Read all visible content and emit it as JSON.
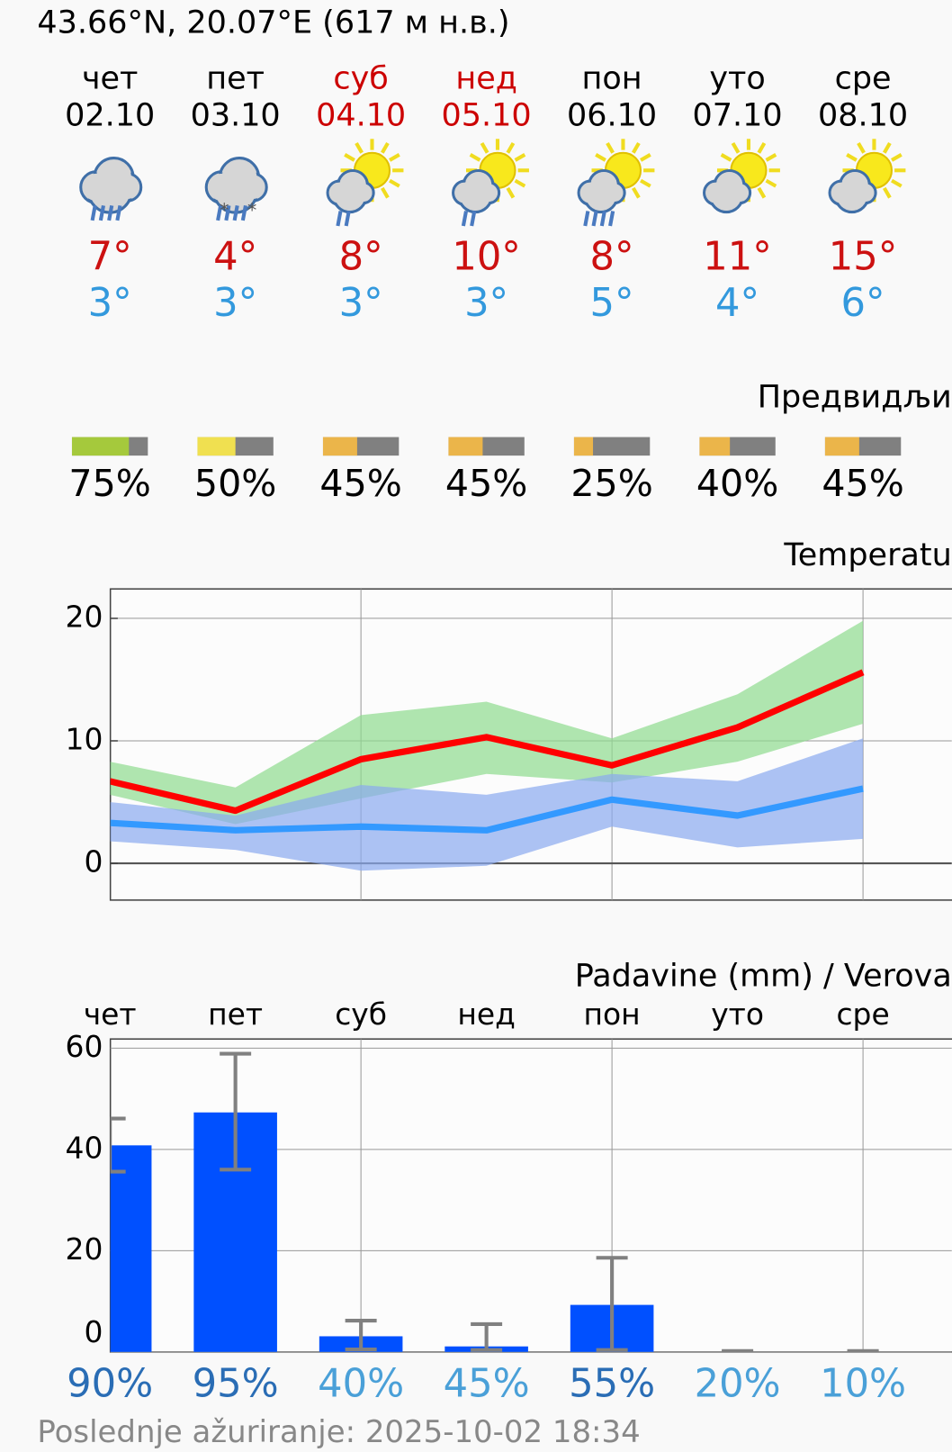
{
  "header": {
    "location": "43.66°N, 20.07°E (617 м н.в.)"
  },
  "forecast": {
    "weekdays": [
      "чет",
      "пет",
      "суб",
      "нед",
      "пон",
      "уто",
      "сре"
    ],
    "dates": [
      "02.10",
      "03.10",
      "04.10",
      "05.10",
      "06.10",
      "07.10",
      "08.10"
    ],
    "weekend": [
      false,
      false,
      true,
      true,
      false,
      false,
      false
    ],
    "weekday_color": "#000000",
    "weekend_color": "#cc0000",
    "highs": {
      "values": [
        7,
        4,
        8,
        10,
        8,
        11,
        15
      ],
      "value_labels": [
        "7°",
        "4°",
        "8°",
        "10°",
        "8°",
        "11°",
        "15°"
      ],
      "color": "#cc1111"
    },
    "lows": {
      "values": [
        3,
        3,
        3,
        3,
        5,
        4,
        6
      ],
      "value_labels": [
        "3°",
        "3°",
        "3°",
        "3°",
        "5°",
        "4°",
        "6°"
      ],
      "color": "#3399dd"
    }
  },
  "predictability": {
    "title": "Предвидљи",
    "values": [
      75,
      50,
      45,
      45,
      25,
      40,
      45
    ],
    "value_labels": [
      "75%",
      "50%",
      "45%",
      "45%",
      "25%",
      "40%",
      "45%"
    ],
    "colors": [
      "#a5c93c",
      "#f0e050",
      "#ebb54a",
      "#ebb54a",
      "#ebb54a",
      "#ebb54a",
      "#ebb54a"
    ],
    "rest_color": "#808080"
  },
  "chart_data": [
    {
      "type": "line",
      "title": "Temperatu",
      "ylim": [
        -3,
        22.4
      ],
      "yticks": [
        0,
        10,
        20
      ],
      "grid": true,
      "series": [
        {
          "color": "#ff0000",
          "values": [
            6.7,
            4.3,
            8.5,
            10.3,
            8.0,
            11.1,
            15.6
          ],
          "band_high": [
            8.3,
            6.2,
            12.1,
            13.2,
            10.2,
            13.8,
            19.8
          ],
          "band_low": [
            5.6,
            3.2,
            5.3,
            7.3,
            6.6,
            8.3,
            11.4
          ],
          "band_color": "#8fdc8f"
        },
        {
          "color": "#3399ff",
          "values": [
            3.3,
            2.7,
            3.0,
            2.7,
            5.2,
            3.9,
            6.1
          ],
          "band_high": [
            5.0,
            3.9,
            6.4,
            5.6,
            7.3,
            6.7,
            10.2
          ],
          "band_low": [
            1.8,
            1.1,
            -0.6,
            -0.2,
            3.0,
            1.3,
            2.0
          ],
          "band_color": "#8aaaf0"
        }
      ]
    },
    {
      "type": "bar",
      "title": "Padavine (mm) / Verova",
      "categories": [
        "чет",
        "пет",
        "суб",
        "нед",
        "пон",
        "уто",
        "сре"
      ],
      "values": [
        40.8,
        47.3,
        3.1,
        1.1,
        9.3,
        0,
        0
      ],
      "error_low": [
        35.6,
        36.0,
        0.5,
        0.4,
        0.4,
        0,
        0
      ],
      "error_high": [
        46.1,
        58.9,
        6.2,
        5.5,
        18.6,
        0.2,
        0.2
      ],
      "color": "#0050ff",
      "error_color": "#808080",
      "ylim": [
        0,
        61.8
      ],
      "yticks": [
        0,
        20,
        40,
        60
      ],
      "grid": true,
      "probabilities": {
        "values": [
          90,
          95,
          40,
          45,
          55,
          20,
          10
        ],
        "value_labels": [
          "90%",
          "95%",
          "40%",
          "45%",
          "55%",
          "20%",
          "10%"
        ],
        "colors": [
          "#2a6db5",
          "#2a6db5",
          "#4aa0d8",
          "#4aa0d8",
          "#2a6db5",
          "#4aa0d8",
          "#4aa0d8"
        ]
      }
    }
  ],
  "footer": {
    "updated": "Poslednje ažuriranje: 2025-10-02 18:34"
  }
}
